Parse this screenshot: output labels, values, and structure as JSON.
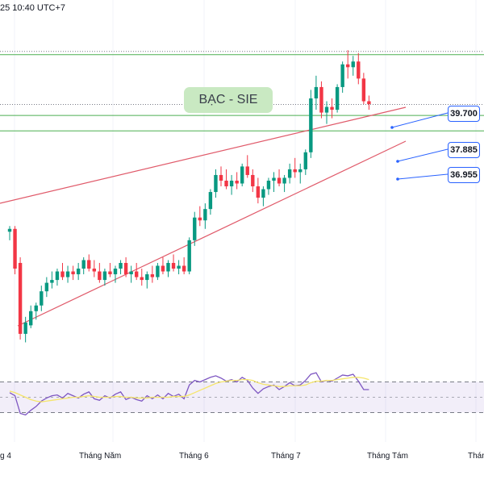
{
  "header": {
    "timestamp": "25 10:40 UTC+7"
  },
  "chart_data": {
    "type": "candlestick",
    "title": "BẠC - SIE",
    "x_tick_labels": [
      "g 4",
      "Tháng Năm",
      "Tháng 6",
      "Tháng 7",
      "Tháng Tám",
      "Tháng"
    ],
    "price_labels": [
      39.7,
      37.885,
      36.955
    ],
    "price_labels_text": [
      "39.700",
      "37.885",
      "36.955"
    ],
    "price_ylim": [
      29.2,
      41.0
    ],
    "candles": [
      [
        33.4,
        33.6,
        33.1,
        33.5
      ],
      [
        33.5,
        33.6,
        31.9,
        32.1
      ],
      [
        32.3,
        32.5,
        29.6,
        29.8
      ],
      [
        29.8,
        30.4,
        29.5,
        30.2
      ],
      [
        30.1,
        30.8,
        30.0,
        30.6
      ],
      [
        30.6,
        30.9,
        30.3,
        30.8
      ],
      [
        30.8,
        31.5,
        30.6,
        31.3
      ],
      [
        31.3,
        31.8,
        31.1,
        31.6
      ],
      [
        31.6,
        32.0,
        31.4,
        31.7
      ],
      [
        31.7,
        32.1,
        31.5,
        32.0
      ],
      [
        32.0,
        32.3,
        31.7,
        31.8
      ],
      [
        31.8,
        32.2,
        31.6,
        32.0
      ],
      [
        32.0,
        32.2,
        31.7,
        31.9
      ],
      [
        31.9,
        32.3,
        31.7,
        32.1
      ],
      [
        32.1,
        32.5,
        31.9,
        32.4
      ],
      [
        32.4,
        32.6,
        32.0,
        32.1
      ],
      [
        32.1,
        32.4,
        31.8,
        32.0
      ],
      [
        32.0,
        32.3,
        31.6,
        31.7
      ],
      [
        31.7,
        32.1,
        31.5,
        32.0
      ],
      [
        32.0,
        32.3,
        31.8,
        31.9
      ],
      [
        31.9,
        32.2,
        31.6,
        32.1
      ],
      [
        32.1,
        32.4,
        31.9,
        32.3
      ],
      [
        32.3,
        32.5,
        31.8,
        31.9
      ],
      [
        31.9,
        32.2,
        31.6,
        32.0
      ],
      [
        32.0,
        32.3,
        31.7,
        31.8
      ],
      [
        31.8,
        32.1,
        31.5,
        31.7
      ],
      [
        31.7,
        32.0,
        31.4,
        31.9
      ],
      [
        31.9,
        32.2,
        31.6,
        31.8
      ],
      [
        31.8,
        32.3,
        31.7,
        32.2
      ],
      [
        32.2,
        32.5,
        31.9,
        32.0
      ],
      [
        32.0,
        32.4,
        31.8,
        32.3
      ],
      [
        32.3,
        32.6,
        32.0,
        32.1
      ],
      [
        32.1,
        32.4,
        31.9,
        32.2
      ],
      [
        32.2,
        32.5,
        31.9,
        32.0
      ],
      [
        32.0,
        33.2,
        31.9,
        33.1
      ],
      [
        33.1,
        34.1,
        32.9,
        33.9
      ],
      [
        33.9,
        34.3,
        33.6,
        33.8
      ],
      [
        33.8,
        34.4,
        33.5,
        34.2
      ],
      [
        34.2,
        34.9,
        34.0,
        34.8
      ],
      [
        34.8,
        35.6,
        34.6,
        35.4
      ],
      [
        35.4,
        35.7,
        35.0,
        35.2
      ],
      [
        35.2,
        35.6,
        34.9,
        35.0
      ],
      [
        35.0,
        35.4,
        34.7,
        35.2
      ],
      [
        35.2,
        35.5,
        34.9,
        35.1
      ],
      [
        35.1,
        35.8,
        35.0,
        35.7
      ],
      [
        35.7,
        36.1,
        35.3,
        35.4
      ],
      [
        35.4,
        35.6,
        34.8,
        35.0
      ],
      [
        35.0,
        35.3,
        34.4,
        34.6
      ],
      [
        34.6,
        35.0,
        34.3,
        34.9
      ],
      [
        34.9,
        35.3,
        34.7,
        35.2
      ],
      [
        35.2,
        35.5,
        34.8,
        35.3
      ],
      [
        35.3,
        35.6,
        35.0,
        35.1
      ],
      [
        35.1,
        35.4,
        34.8,
        35.3
      ],
      [
        35.3,
        35.8,
        35.1,
        35.6
      ],
      [
        35.6,
        36.0,
        35.3,
        35.5
      ],
      [
        35.5,
        35.8,
        35.1,
        35.6
      ],
      [
        35.6,
        36.3,
        35.4,
        36.2
      ],
      [
        36.2,
        38.4,
        36.0,
        38.1
      ],
      [
        38.1,
        38.9,
        37.7,
        38.5
      ],
      [
        38.5,
        38.7,
        37.4,
        37.6
      ],
      [
        37.6,
        38.0,
        37.2,
        37.8
      ],
      [
        37.8,
        38.1,
        37.4,
        37.7
      ],
      [
        37.7,
        38.6,
        37.6,
        38.5
      ],
      [
        38.5,
        39.4,
        38.3,
        39.3
      ],
      [
        39.3,
        39.8,
        38.8,
        39.2
      ],
      [
        39.2,
        39.6,
        38.9,
        39.4
      ],
      [
        39.4,
        39.7,
        38.6,
        38.8
      ],
      [
        38.8,
        39.0,
        37.9,
        38.0
      ],
      [
        38.0,
        38.2,
        37.7,
        37.9
      ]
    ],
    "rsi": [
      56,
      52,
      29,
      27,
      33,
      38,
      45,
      49,
      52,
      53,
      49,
      55,
      52,
      49,
      54,
      57,
      48,
      46,
      52,
      49,
      54,
      57,
      47,
      50,
      47,
      45,
      52,
      48,
      53,
      48,
      55,
      51,
      54,
      48,
      66,
      72,
      70,
      73,
      76,
      78,
      75,
      71,
      73,
      70,
      76,
      72,
      62,
      55,
      61,
      64,
      66,
      60,
      64,
      69,
      65,
      66,
      72,
      80,
      82,
      70,
      72,
      71,
      75,
      79,
      78,
      80,
      71,
      60,
      60
    ],
    "rsi_ma": [
      58,
      56,
      53,
      50,
      47,
      45,
      44,
      45,
      46,
      47,
      48,
      49,
      50,
      50,
      51,
      52,
      51,
      50,
      50,
      50,
      51,
      51,
      50,
      50,
      49,
      49,
      49,
      50,
      50,
      50,
      50,
      51,
      51,
      51,
      53,
      56,
      59,
      62,
      65,
      68,
      70,
      71,
      72,
      72,
      73,
      73,
      72,
      69,
      67,
      66,
      65,
      64,
      64,
      65,
      65,
      65,
      66,
      69,
      71,
      71,
      72,
      72,
      73,
      74,
      75,
      76,
      76,
      75,
      73
    ],
    "rsi_ylim": [
      0,
      100
    ],
    "rsi_levels": [
      70,
      50,
      30
    ]
  }
}
